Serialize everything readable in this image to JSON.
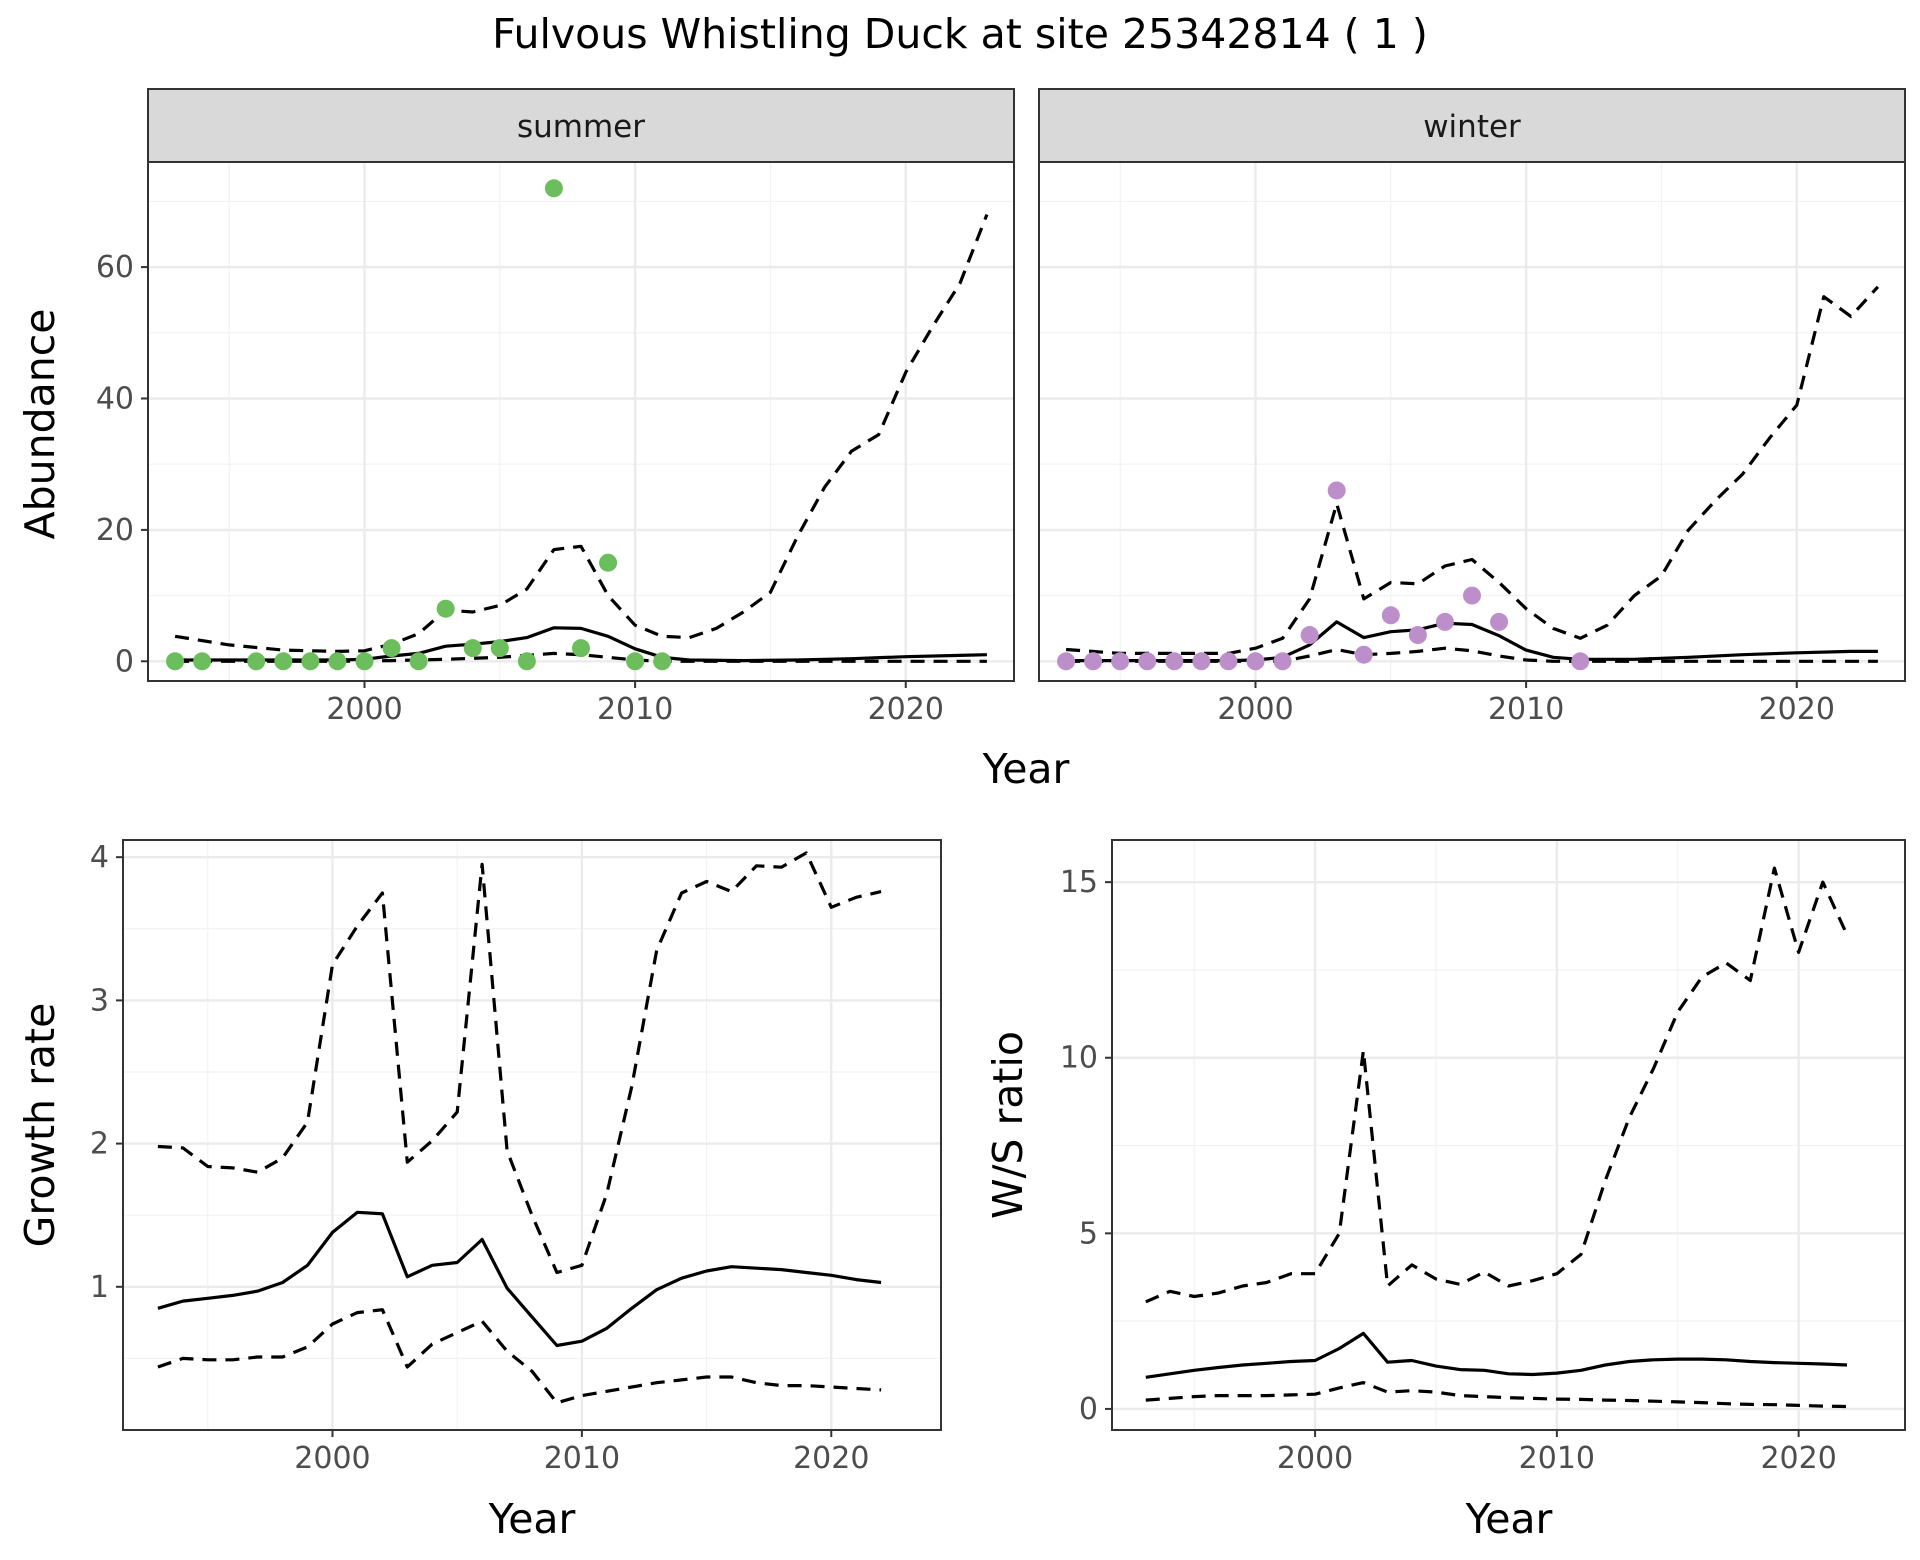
{
  "title": "Fulvous Whistling Duck at site 25342814 ( 1 )",
  "colors": {
    "summer_points": "#6cbd5b",
    "winter_points": "#bc8fcb",
    "line": "#000000",
    "strip": "#d9d9d9"
  },
  "top_row": {
    "xlabel": "Year",
    "ylabel": "Abundance"
  },
  "chart_data": [
    {
      "type": "line",
      "id": "abundance-summer",
      "facet_label": "summer",
      "xlabel": "",
      "ylabel": "Abundance",
      "xlim": [
        1992,
        2024
      ],
      "ylim": [
        -3,
        76
      ],
      "x_ticks": [
        2000,
        2010,
        2020
      ],
      "y_ticks": [
        0,
        20,
        40,
        60
      ],
      "grid": true,
      "points": {
        "color": "#6cbd5b",
        "x": [
          1993,
          1994,
          1996,
          1997,
          1998,
          1999,
          2000,
          2001,
          2002,
          2003,
          2004,
          2005,
          2006,
          2007,
          2008,
          2009,
          2010,
          2011
        ],
        "y": [
          0,
          0,
          0,
          0,
          0,
          0,
          0,
          2,
          0,
          8,
          2,
          2,
          0,
          72,
          2,
          15,
          0,
          0
        ]
      },
      "series": [
        {
          "style": "solid",
          "x": [
            1993,
            1995,
            1997,
            1999,
            2000,
            2001,
            2002,
            2003,
            2004,
            2005,
            2006,
            2007,
            2008,
            2009,
            2010,
            2011,
            2012,
            2014,
            2016,
            2018,
            2020,
            2022,
            2023
          ],
          "y": [
            0.2,
            0.2,
            0.2,
            0.2,
            0.3,
            0.8,
            1.2,
            2.3,
            2.6,
            3.0,
            3.6,
            5.1,
            5.0,
            3.8,
            1.9,
            0.6,
            0.2,
            0.1,
            0.2,
            0.4,
            0.7,
            0.9,
            1.0
          ]
        },
        {
          "style": "dashed",
          "x": [
            1993,
            1995,
            1997,
            1999,
            2000,
            2001,
            2002,
            2003,
            2004,
            2005,
            2006,
            2007,
            2008,
            2009,
            2010,
            2011,
            2012,
            2013,
            2014,
            2015,
            2016,
            2017,
            2018,
            2019,
            2020,
            2021,
            2022,
            2023
          ],
          "y": [
            3.8,
            2.5,
            1.7,
            1.5,
            1.6,
            2.6,
            4.2,
            7.8,
            7.5,
            8.5,
            11,
            17,
            17.5,
            10,
            5.5,
            3.8,
            3.6,
            5.0,
            7.5,
            10.5,
            19,
            26.5,
            32,
            34.5,
            44,
            51,
            57.5,
            68
          ]
        },
        {
          "style": "dashed",
          "x": [
            1993,
            1995,
            1997,
            1999,
            2001,
            2003,
            2005,
            2007,
            2008,
            2009,
            2010,
            2011,
            2013,
            2015,
            2017,
            2019,
            2021,
            2023
          ],
          "y": [
            0,
            0,
            0,
            0,
            0.1,
            0.3,
            0.6,
            1.2,
            1.0,
            0.6,
            0.2,
            0,
            0,
            0,
            0,
            0,
            0,
            0
          ]
        }
      ]
    },
    {
      "type": "line",
      "id": "abundance-winter",
      "facet_label": "winter",
      "xlabel": "",
      "ylabel": "",
      "xlim": [
        1992,
        2024
      ],
      "ylim": [
        -3,
        76
      ],
      "x_ticks": [
        2000,
        2010,
        2020
      ],
      "y_ticks": [
        0,
        20,
        40,
        60
      ],
      "grid": true,
      "points": {
        "color": "#bc8fcb",
        "x": [
          1993,
          1994,
          1995,
          1996,
          1997,
          1998,
          1999,
          2000,
          2001,
          2002,
          2003,
          2004,
          2005,
          2006,
          2007,
          2008,
          2009,
          2012
        ],
        "y": [
          0,
          0,
          0,
          0,
          0,
          0,
          0,
          0,
          0,
          4,
          26,
          1,
          7,
          4,
          6,
          10,
          6,
          0
        ]
      },
      "series": [
        {
          "style": "solid",
          "x": [
            1993,
            1995,
            1997,
            1999,
            2000,
            2001,
            2002,
            2003,
            2004,
            2005,
            2006,
            2007,
            2008,
            2009,
            2010,
            2011,
            2012,
            2014,
            2016,
            2018,
            2020,
            2022,
            2023
          ],
          "y": [
            0.1,
            0.1,
            0.1,
            0.1,
            0.2,
            0.6,
            2.5,
            6.0,
            3.6,
            4.5,
            4.8,
            5.8,
            5.6,
            3.9,
            1.7,
            0.6,
            0.3,
            0.3,
            0.6,
            1.0,
            1.3,
            1.5,
            1.5
          ]
        },
        {
          "style": "dashed",
          "x": [
            1993,
            1995,
            1997,
            1999,
            2000,
            2001,
            2002,
            2003,
            2004,
            2005,
            2006,
            2007,
            2008,
            2009,
            2010,
            2011,
            2012,
            2013,
            2014,
            2015,
            2016,
            2017,
            2018,
            2019,
            2020,
            2021,
            2022,
            2023
          ],
          "y": [
            1.8,
            1.2,
            1.2,
            1.2,
            2.0,
            3.5,
            9.5,
            24,
            9.5,
            12,
            11.8,
            14.5,
            15.5,
            12,
            8,
            5,
            3.5,
            5.5,
            10,
            13,
            20,
            24.5,
            28.5,
            34,
            39,
            55.5,
            52.5,
            57
          ]
        },
        {
          "style": "dashed",
          "x": [
            1993,
            1995,
            1997,
            1999,
            2001,
            2002,
            2003,
            2004,
            2005,
            2006,
            2007,
            2008,
            2009,
            2010,
            2011,
            2013,
            2015,
            2017,
            2019,
            2021,
            2023
          ],
          "y": [
            0,
            0,
            0,
            0,
            0,
            0.8,
            1.8,
            1.0,
            1.2,
            1.5,
            2.0,
            1.6,
            0.8,
            0.2,
            0,
            0,
            0,
            0,
            0,
            0,
            0
          ]
        }
      ]
    },
    {
      "type": "line",
      "id": "growth-rate",
      "xlabel": "Year",
      "ylabel": "Growth rate",
      "xlim": [
        1991.6,
        2024.4
      ],
      "ylim": [
        0.0,
        4.12
      ],
      "x_ticks": [
        2000,
        2010,
        2020
      ],
      "y_ticks": [
        1,
        2,
        3,
        4
      ],
      "grid": true,
      "series": [
        {
          "style": "solid",
          "x": [
            1993,
            1994,
            1995,
            1996,
            1997,
            1998,
            1999,
            2000,
            2001,
            2002,
            2003,
            2004,
            2005,
            2006,
            2007,
            2008,
            2009,
            2010,
            2011,
            2012,
            2013,
            2014,
            2015,
            2016,
            2017,
            2018,
            2019,
            2020,
            2021,
            2022
          ],
          "y": [
            0.85,
            0.9,
            0.92,
            0.94,
            0.97,
            1.03,
            1.15,
            1.38,
            1.52,
            1.51,
            1.07,
            1.15,
            1.17,
            1.33,
            0.99,
            0.79,
            0.59,
            0.62,
            0.71,
            0.85,
            0.98,
            1.06,
            1.11,
            1.14,
            1.13,
            1.12,
            1.1,
            1.08,
            1.05,
            1.03
          ]
        },
        {
          "style": "dashed",
          "x": [
            1993,
            1994,
            1995,
            1996,
            1997,
            1998,
            1999,
            2000,
            2001,
            2002,
            2003,
            2004,
            2005,
            2006,
            2007,
            2008,
            2009,
            2010,
            2011,
            2012,
            2013,
            2014,
            2015,
            2016,
            2017,
            2018,
            2019,
            2020,
            2021,
            2022
          ],
          "y": [
            1.98,
            1.97,
            1.84,
            1.83,
            1.8,
            1.9,
            2.15,
            3.25,
            3.52,
            3.75,
            1.87,
            2.02,
            2.22,
            3.95,
            1.95,
            1.5,
            1.1,
            1.15,
            1.65,
            2.4,
            3.35,
            3.75,
            3.83,
            3.76,
            3.94,
            3.93,
            4.03,
            3.65,
            3.72,
            3.76
          ]
        },
        {
          "style": "dashed",
          "x": [
            1993,
            1994,
            1995,
            1996,
            1997,
            1998,
            1999,
            2000,
            2001,
            2002,
            2003,
            2004,
            2005,
            2006,
            2007,
            2008,
            2009,
            2010,
            2011,
            2012,
            2013,
            2014,
            2015,
            2016,
            2017,
            2018,
            2019,
            2020,
            2021,
            2022
          ],
          "y": [
            0.44,
            0.5,
            0.49,
            0.49,
            0.51,
            0.51,
            0.58,
            0.74,
            0.82,
            0.84,
            0.44,
            0.6,
            0.68,
            0.76,
            0.55,
            0.41,
            0.19,
            0.24,
            0.27,
            0.3,
            0.33,
            0.35,
            0.37,
            0.37,
            0.33,
            0.31,
            0.31,
            0.3,
            0.29,
            0.28
          ]
        }
      ]
    },
    {
      "type": "line",
      "id": "ws-ratio",
      "xlabel": "Year",
      "ylabel": "W/S ratio",
      "xlim": [
        1991.6,
        2024.4
      ],
      "ylim": [
        -0.6,
        16.2
      ],
      "x_ticks": [
        2000,
        2010,
        2020
      ],
      "y_ticks": [
        0,
        5,
        10,
        15
      ],
      "grid": true,
      "series": [
        {
          "style": "solid",
          "x": [
            1993,
            1994,
            1995,
            1996,
            1997,
            1998,
            1999,
            2000,
            2001,
            2002,
            2003,
            2004,
            2005,
            2006,
            2007,
            2008,
            2009,
            2010,
            2011,
            2012,
            2013,
            2014,
            2015,
            2016,
            2017,
            2018,
            2019,
            2020,
            2021,
            2022
          ],
          "y": [
            0.9,
            1.0,
            1.1,
            1.18,
            1.25,
            1.3,
            1.35,
            1.38,
            1.72,
            2.15,
            1.33,
            1.38,
            1.22,
            1.12,
            1.1,
            1.0,
            0.98,
            1.02,
            1.1,
            1.25,
            1.35,
            1.4,
            1.42,
            1.42,
            1.4,
            1.35,
            1.32,
            1.3,
            1.28,
            1.25
          ]
        },
        {
          "style": "dashed",
          "x": [
            1993,
            1994,
            1995,
            1996,
            1997,
            1998,
            1999,
            2000,
            2001,
            2002,
            2003,
            2004,
            2005,
            2006,
            2007,
            2008,
            2009,
            2010,
            2011,
            2012,
            2013,
            2014,
            2015,
            2016,
            2017,
            2018,
            2019,
            2020,
            2021,
            2022
          ],
          "y": [
            3.05,
            3.35,
            3.2,
            3.3,
            3.5,
            3.6,
            3.85,
            3.85,
            5.0,
            10.2,
            3.5,
            4.1,
            3.7,
            3.55,
            3.9,
            3.5,
            3.65,
            3.85,
            4.4,
            6.5,
            8.3,
            9.7,
            11.3,
            12.3,
            12.7,
            12.2,
            15.4,
            13.0,
            15.0,
            13.5
          ]
        },
        {
          "style": "dashed",
          "x": [
            1993,
            1994,
            1995,
            1996,
            1997,
            1998,
            1999,
            2000,
            2001,
            2002,
            2003,
            2004,
            2005,
            2006,
            2007,
            2008,
            2009,
            2010,
            2011,
            2012,
            2013,
            2014,
            2015,
            2016,
            2017,
            2018,
            2019,
            2020,
            2021,
            2022
          ],
          "y": [
            0.25,
            0.3,
            0.35,
            0.38,
            0.38,
            0.38,
            0.4,
            0.42,
            0.6,
            0.75,
            0.48,
            0.52,
            0.48,
            0.38,
            0.35,
            0.32,
            0.3,
            0.28,
            0.27,
            0.25,
            0.24,
            0.22,
            0.2,
            0.18,
            0.15,
            0.13,
            0.12,
            0.1,
            0.08,
            0.07
          ]
        }
      ]
    }
  ]
}
